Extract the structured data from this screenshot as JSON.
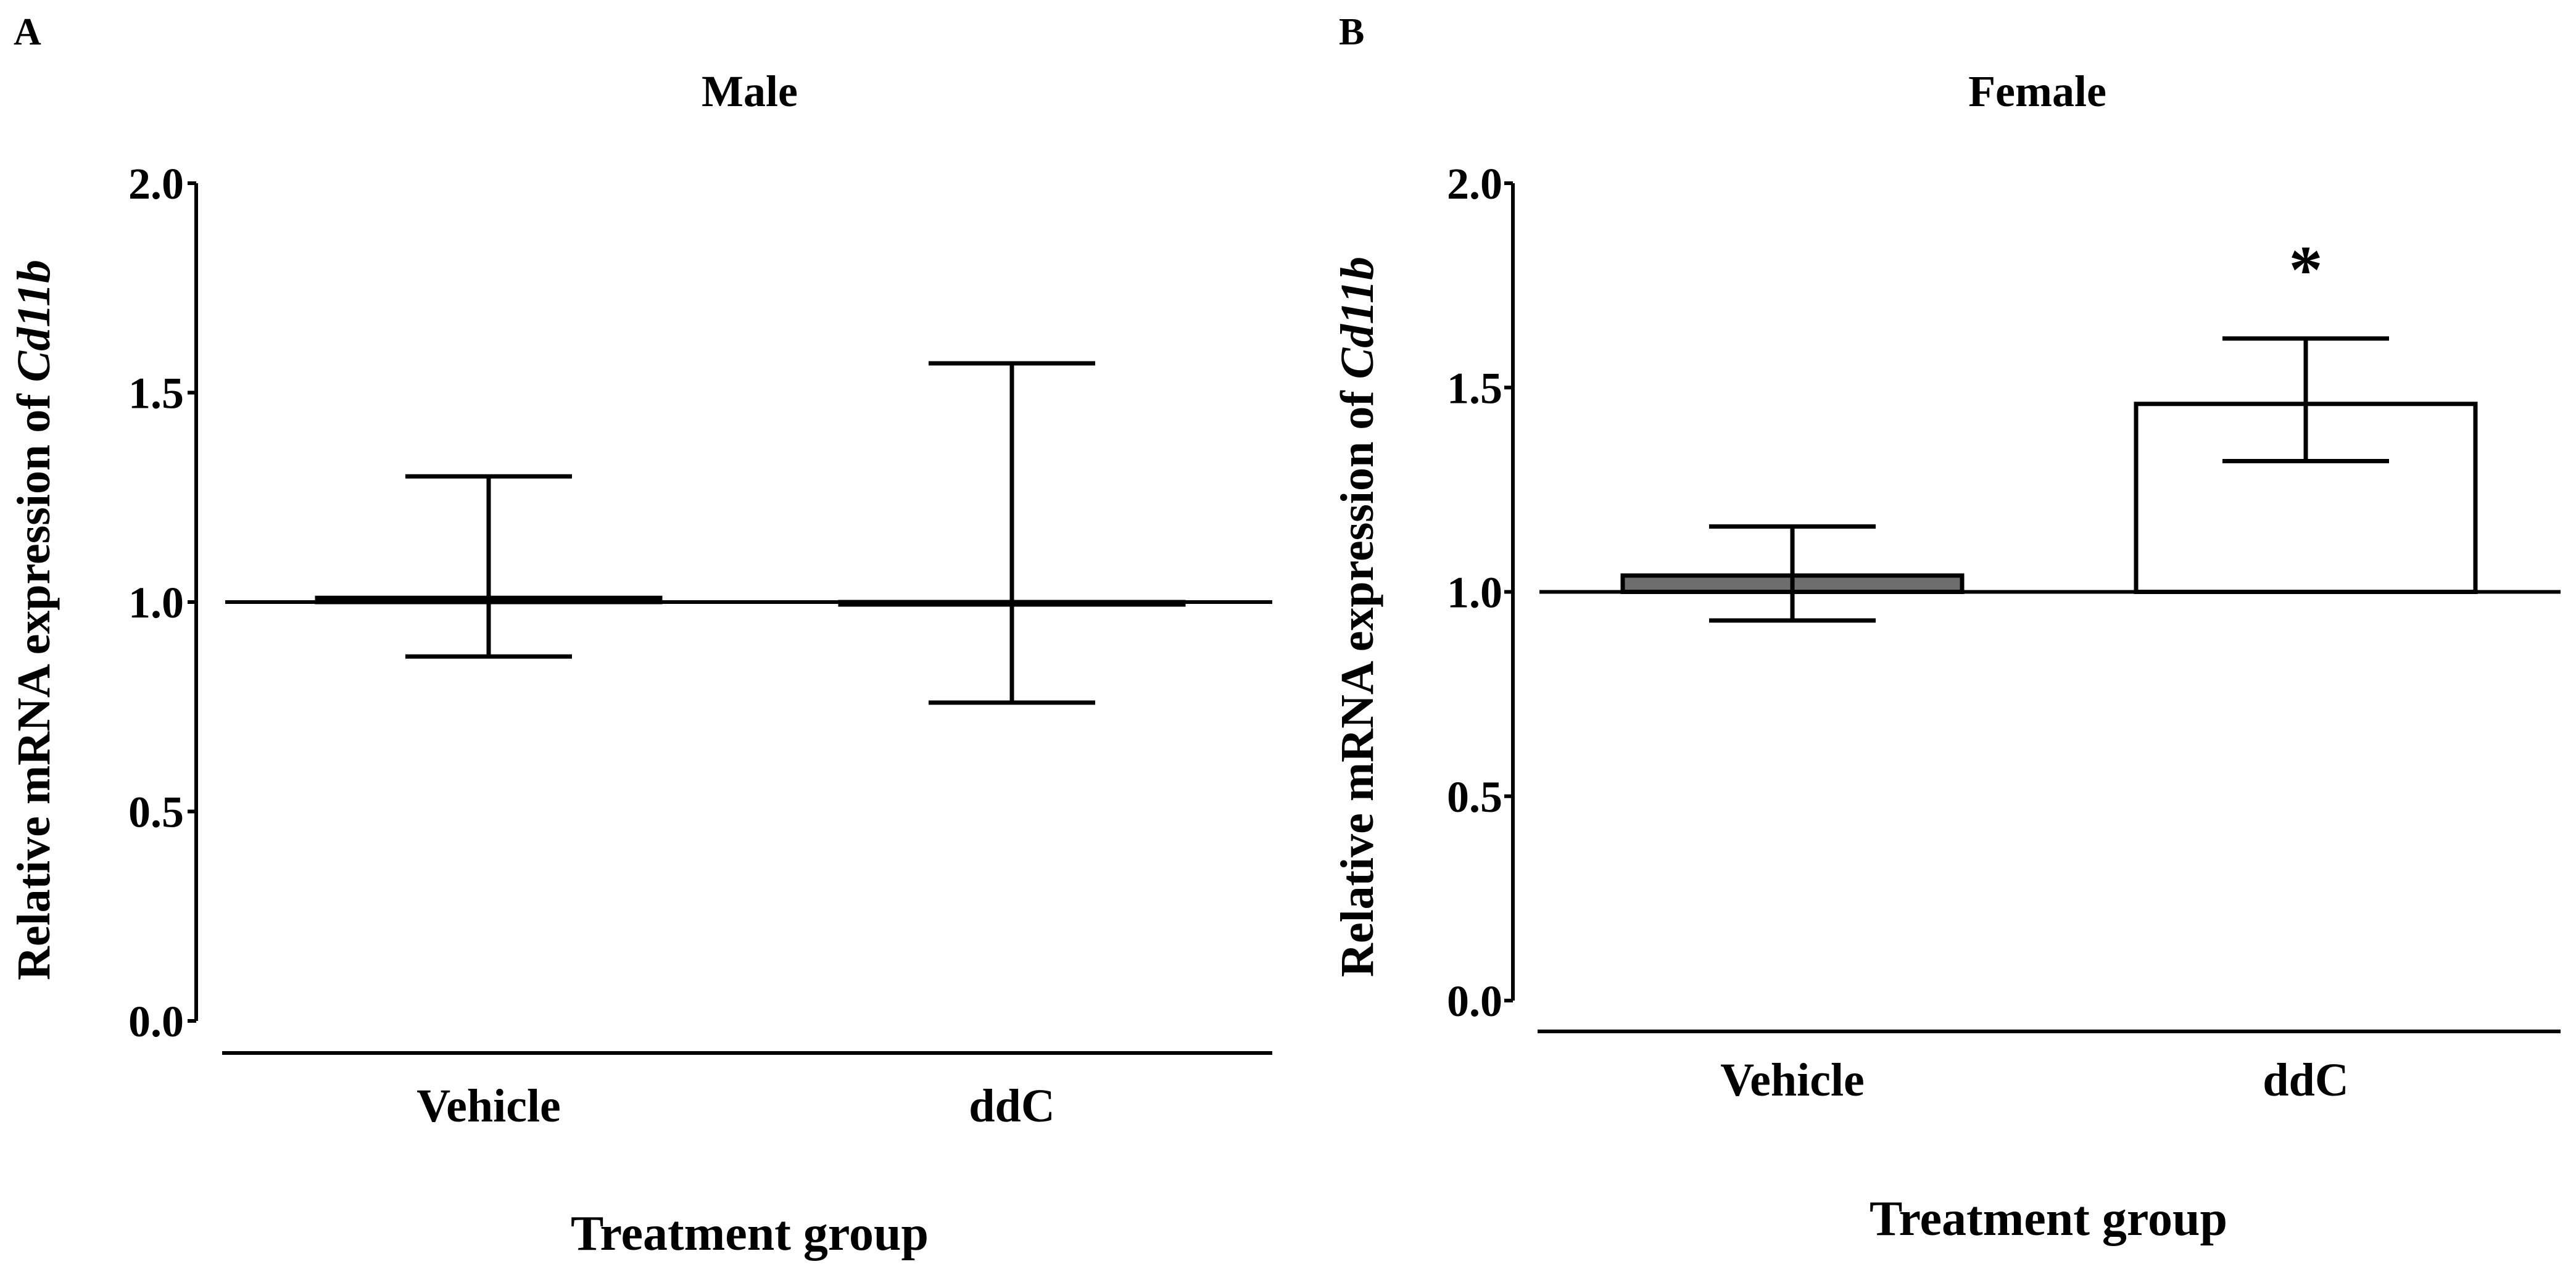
{
  "chart_data": [
    {
      "panel": "A",
      "type": "bar",
      "title": "Male",
      "xlabel": "Treatment group",
      "ylabel": {
        "prefix": "Relative mRNA expression of ",
        "gene": "Cd11b"
      },
      "categories": [
        "Vehicle",
        "ddC"
      ],
      "values": [
        1.01,
        1.0
      ],
      "error_upper": [
        1.3,
        1.57
      ],
      "error_lower": [
        0.87,
        0.76
      ],
      "baseline": 1.0,
      "ylim": [
        0.0,
        2.0
      ],
      "yticks": [
        "0.0",
        "0.5",
        "1.0",
        "1.5",
        "2.0"
      ],
      "bar_colors": [
        "#6e6e6e",
        "#ffffff"
      ],
      "annotations": []
    },
    {
      "panel": "B",
      "type": "bar",
      "title": "Female",
      "xlabel": "Treatment group",
      "ylabel": {
        "prefix": "Relative mRNA expression of ",
        "gene": "Cd11b"
      },
      "categories": [
        "Vehicle",
        "ddC"
      ],
      "values": [
        1.04,
        1.46
      ],
      "error_upper": [
        1.16,
        1.62
      ],
      "error_lower": [
        0.93,
        1.32
      ],
      "baseline": 1.0,
      "ylim": [
        0.0,
        2.0
      ],
      "yticks": [
        "0.0",
        "0.5",
        "1.0",
        "1.5",
        "2.0"
      ],
      "bar_colors": [
        "#6e6e6e",
        "#ffffff"
      ],
      "annotations": [
        "*"
      ]
    }
  ]
}
